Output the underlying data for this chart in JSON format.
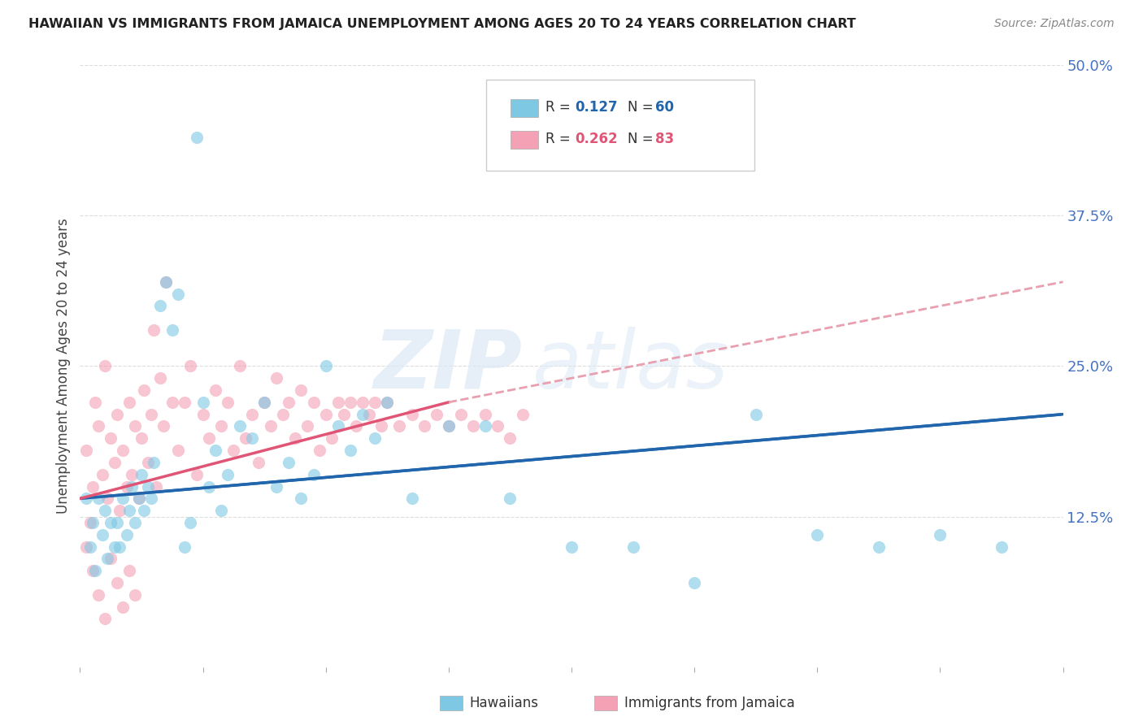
{
  "title": "HAWAIIAN VS IMMIGRANTS FROM JAMAICA UNEMPLOYMENT AMONG AGES 20 TO 24 YEARS CORRELATION CHART",
  "source": "Source: ZipAtlas.com",
  "ylabel": "Unemployment Among Ages 20 to 24 years",
  "ytick_labels": [
    "",
    "12.5%",
    "25.0%",
    "37.5%",
    "50.0%"
  ],
  "ytick_values": [
    0,
    0.125,
    0.25,
    0.375,
    0.5
  ],
  "xlim": [
    0,
    0.8
  ],
  "ylim": [
    0,
    0.5
  ],
  "color_hawaiian": "#7ec8e3",
  "color_jamaica": "#f4a0b5",
  "color_line_hawaiian": "#2166ac",
  "color_line_jamaica": "#e05575",
  "color_line_jamaica_dash": "#e8a0b0",
  "watermark_zip": "ZIP",
  "watermark_atlas": "atlas",
  "hawaiian_x": [
    0.005,
    0.008,
    0.01,
    0.012,
    0.015,
    0.018,
    0.02,
    0.022,
    0.025,
    0.028,
    0.03,
    0.032,
    0.035,
    0.038,
    0.04,
    0.042,
    0.045,
    0.048,
    0.05,
    0.052,
    0.055,
    0.058,
    0.06,
    0.065,
    0.07,
    0.075,
    0.08,
    0.085,
    0.09,
    0.095,
    0.1,
    0.105,
    0.11,
    0.115,
    0.12,
    0.13,
    0.14,
    0.15,
    0.16,
    0.17,
    0.18,
    0.19,
    0.2,
    0.21,
    0.22,
    0.23,
    0.24,
    0.25,
    0.27,
    0.3,
    0.33,
    0.35,
    0.4,
    0.45,
    0.5,
    0.55,
    0.6,
    0.65,
    0.7,
    0.75
  ],
  "hawaiian_y": [
    0.14,
    0.1,
    0.12,
    0.08,
    0.14,
    0.11,
    0.13,
    0.09,
    0.12,
    0.1,
    0.12,
    0.1,
    0.14,
    0.11,
    0.13,
    0.15,
    0.12,
    0.14,
    0.16,
    0.13,
    0.15,
    0.14,
    0.17,
    0.3,
    0.32,
    0.28,
    0.31,
    0.1,
    0.12,
    0.44,
    0.22,
    0.15,
    0.18,
    0.13,
    0.16,
    0.2,
    0.19,
    0.22,
    0.15,
    0.17,
    0.14,
    0.16,
    0.25,
    0.2,
    0.18,
    0.21,
    0.19,
    0.22,
    0.14,
    0.2,
    0.2,
    0.14,
    0.1,
    0.1,
    0.07,
    0.21,
    0.11,
    0.1,
    0.11,
    0.1
  ],
  "jamaica_x": [
    0.005,
    0.008,
    0.01,
    0.012,
    0.015,
    0.018,
    0.02,
    0.022,
    0.025,
    0.028,
    0.03,
    0.032,
    0.035,
    0.038,
    0.04,
    0.042,
    0.045,
    0.048,
    0.05,
    0.052,
    0.055,
    0.058,
    0.06,
    0.062,
    0.065,
    0.068,
    0.07,
    0.075,
    0.08,
    0.085,
    0.09,
    0.095,
    0.1,
    0.105,
    0.11,
    0.115,
    0.12,
    0.125,
    0.13,
    0.135,
    0.14,
    0.145,
    0.15,
    0.155,
    0.16,
    0.165,
    0.17,
    0.175,
    0.18,
    0.185,
    0.19,
    0.195,
    0.2,
    0.205,
    0.21,
    0.215,
    0.22,
    0.225,
    0.23,
    0.235,
    0.24,
    0.245,
    0.25,
    0.26,
    0.27,
    0.28,
    0.29,
    0.3,
    0.31,
    0.32,
    0.33,
    0.34,
    0.35,
    0.36,
    0.005,
    0.01,
    0.015,
    0.02,
    0.025,
    0.03,
    0.035,
    0.04,
    0.045
  ],
  "jamaica_y": [
    0.18,
    0.12,
    0.15,
    0.22,
    0.2,
    0.16,
    0.25,
    0.14,
    0.19,
    0.17,
    0.21,
    0.13,
    0.18,
    0.15,
    0.22,
    0.16,
    0.2,
    0.14,
    0.19,
    0.23,
    0.17,
    0.21,
    0.28,
    0.15,
    0.24,
    0.2,
    0.32,
    0.22,
    0.18,
    0.22,
    0.25,
    0.16,
    0.21,
    0.19,
    0.23,
    0.2,
    0.22,
    0.18,
    0.25,
    0.19,
    0.21,
    0.17,
    0.22,
    0.2,
    0.24,
    0.21,
    0.22,
    0.19,
    0.23,
    0.2,
    0.22,
    0.18,
    0.21,
    0.19,
    0.22,
    0.21,
    0.22,
    0.2,
    0.22,
    0.21,
    0.22,
    0.2,
    0.22,
    0.2,
    0.21,
    0.2,
    0.21,
    0.2,
    0.21,
    0.2,
    0.21,
    0.2,
    0.19,
    0.21,
    0.1,
    0.08,
    0.06,
    0.04,
    0.09,
    0.07,
    0.05,
    0.08,
    0.06
  ],
  "line_h_x0": 0.0,
  "line_h_y0": 0.14,
  "line_h_x1": 0.8,
  "line_h_y1": 0.21,
  "line_j_solid_x0": 0.0,
  "line_j_solid_y0": 0.14,
  "line_j_solid_x1": 0.3,
  "line_j_solid_y1": 0.22,
  "line_j_dash_x0": 0.3,
  "line_j_dash_y0": 0.22,
  "line_j_dash_x1": 0.8,
  "line_j_dash_y1": 0.32
}
